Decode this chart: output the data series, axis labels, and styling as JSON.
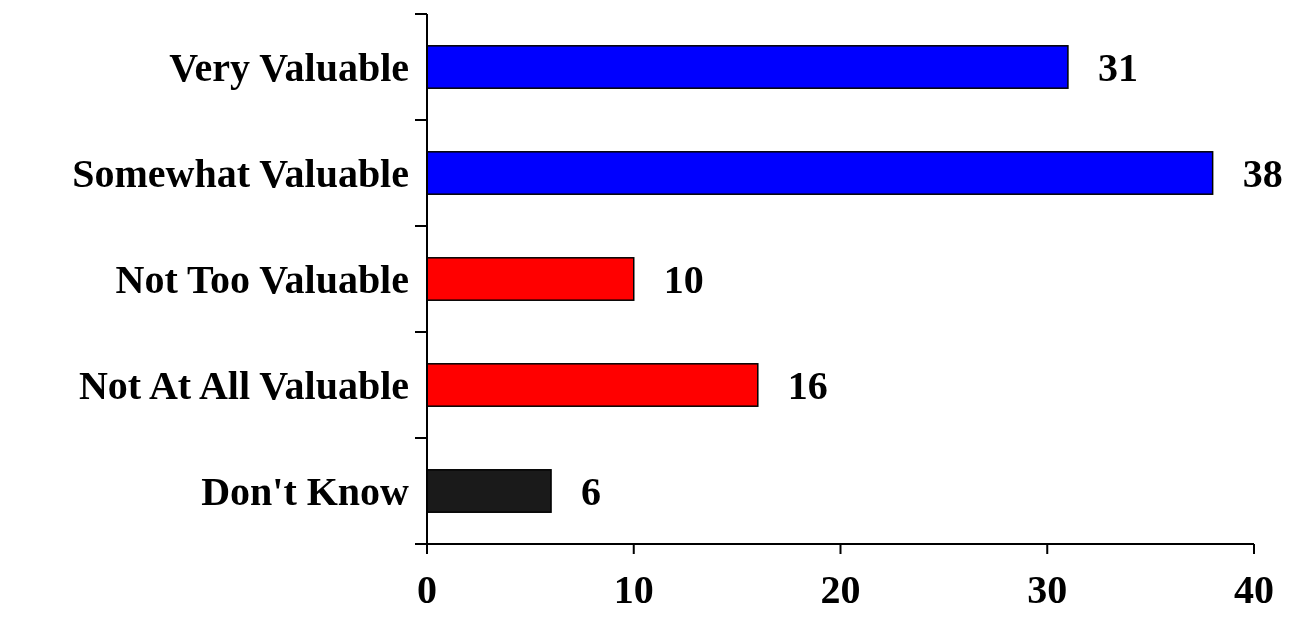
{
  "chart_data": {
    "type": "bar",
    "orientation": "horizontal",
    "categories": [
      "Very Valuable",
      "Somewhat Valuable",
      "Not Too Valuable",
      "Not At All Valuable",
      "Don't Know"
    ],
    "values": [
      31,
      38,
      10,
      16,
      6
    ],
    "colors": [
      "#0000ff",
      "#0000ff",
      "#ff0000",
      "#ff0000",
      "#1a1a1a"
    ],
    "xlim": [
      0,
      40
    ],
    "xticks": [
      0,
      10,
      20,
      30,
      40
    ],
    "data_labels": true,
    "grid": false
  }
}
